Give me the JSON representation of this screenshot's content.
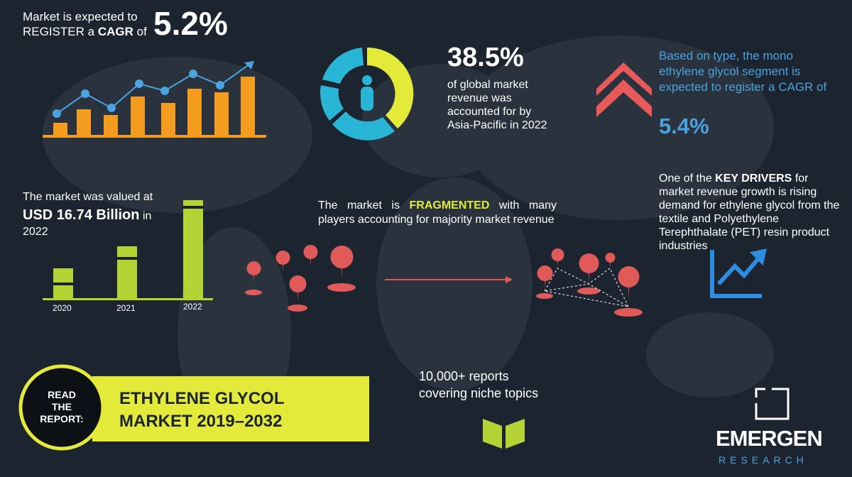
{
  "cagr": {
    "line1": "Market is expected to",
    "line2_pre": "REGISTER a",
    "line2_bold": "CAGR",
    "line2_post": "of",
    "value": "5.2%"
  },
  "asia_pacific": {
    "value": "38.5%",
    "text": "of global market revenue was accounted for by Asia-Pacific in 2022"
  },
  "type_segment": {
    "text": "Based on type, the mono ethylene glycol segment is expected to register a CAGR of",
    "value": "5.4%"
  },
  "valuation": {
    "line1": "The market was valued at",
    "amount": "USD 16.74 Billion",
    "suffix": "in",
    "year": "2022",
    "bar_labels": [
      "2020",
      "2021",
      "2022"
    ]
  },
  "fragmented": {
    "pre": "The market is",
    "bold": "FRAGMENTED",
    "post": "with many players accounting for majority market revenue"
  },
  "drivers": {
    "pre": "One of the",
    "bold": "KEY DRIVERS",
    "post": "for market revenue growth is rising demand for ethylene glycol from the textile and Polyethylene Terephthalate (PET) resin product industries"
  },
  "reports": {
    "line1": "10,000+ reports",
    "line2": "covering niche topics"
  },
  "read_report": {
    "badge": [
      "READ",
      "THE",
      "REPORT:"
    ],
    "title_line1": "ETHYLENE GLYCOL",
    "title_line2": "MARKET 2019–2032"
  },
  "logo": {
    "name": "EMERGEN",
    "sub": "RESEARCH"
  }
}
